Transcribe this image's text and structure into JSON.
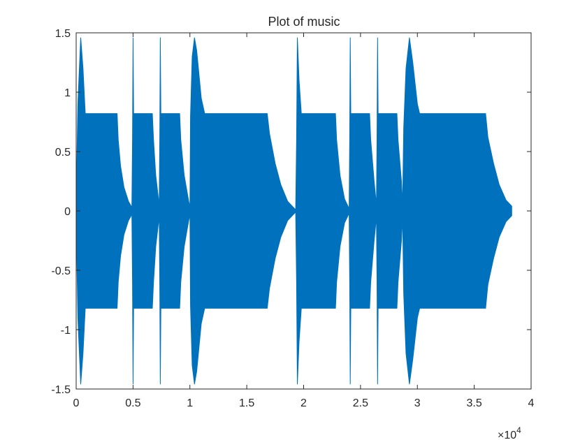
{
  "chart_data": {
    "type": "area",
    "title": "Plot of music",
    "xlabel": "",
    "ylabel": "",
    "xlim": [
      0,
      40000
    ],
    "ylim": [
      -1.5,
      1.5
    ],
    "x_exponent_label": "×10",
    "x_exponent_power": "4",
    "xticks": [
      {
        "value": 0,
        "label": "0"
      },
      {
        "value": 5000,
        "label": "0.5"
      },
      {
        "value": 10000,
        "label": "1"
      },
      {
        "value": 15000,
        "label": "1.5"
      },
      {
        "value": 20000,
        "label": "2"
      },
      {
        "value": 25000,
        "label": "2.5"
      },
      {
        "value": 30000,
        "label": "3"
      },
      {
        "value": 35000,
        "label": "3.5"
      },
      {
        "value": 40000,
        "label": "4"
      }
    ],
    "yticks": [
      {
        "value": 1.5,
        "label": "1.5"
      },
      {
        "value": 1,
        "label": "1"
      },
      {
        "value": 0.5,
        "label": "0.5"
      },
      {
        "value": 0,
        "label": "0"
      },
      {
        "value": -0.5,
        "label": "-0.5"
      },
      {
        "value": -1,
        "label": "-1"
      },
      {
        "value": -1.5,
        "label": "-1.5"
      }
    ],
    "grid": false,
    "series": [
      {
        "color": "#0072BD",
        "envelope_upper": [
          [
            0,
            0.05
          ],
          [
            150,
            0.9
          ],
          [
            400,
            1.46
          ],
          [
            600,
            1.2
          ],
          [
            800,
            0.82
          ],
          [
            3600,
            0.82
          ],
          [
            3700,
            0.6
          ],
          [
            3900,
            0.38
          ],
          [
            4200,
            0.2
          ],
          [
            4600,
            0.08
          ],
          [
            4900,
            0.03
          ],
          [
            4950,
            0.6
          ],
          [
            5000,
            1.46
          ],
          [
            5050,
            0.82
          ],
          [
            6700,
            0.82
          ],
          [
            6800,
            0.6
          ],
          [
            7000,
            0.3
          ],
          [
            7300,
            0.05
          ],
          [
            7350,
            0.6
          ],
          [
            7400,
            1.46
          ],
          [
            7450,
            0.82
          ],
          [
            9100,
            0.82
          ],
          [
            9200,
            0.6
          ],
          [
            9500,
            0.3
          ],
          [
            9900,
            0.08
          ],
          [
            10000,
            0.03
          ],
          [
            10050,
            0.8
          ],
          [
            10200,
            1.3
          ],
          [
            10400,
            1.46
          ],
          [
            10600,
            1.35
          ],
          [
            11000,
            0.95
          ],
          [
            11300,
            0.82
          ],
          [
            16800,
            0.82
          ],
          [
            17000,
            0.65
          ],
          [
            17500,
            0.4
          ],
          [
            18000,
            0.22
          ],
          [
            18600,
            0.08
          ],
          [
            19300,
            0.01
          ],
          [
            19380,
            0.6
          ],
          [
            19450,
            1.46
          ],
          [
            19600,
            1.1
          ],
          [
            19800,
            0.82
          ],
          [
            22800,
            0.82
          ],
          [
            22900,
            0.6
          ],
          [
            23200,
            0.3
          ],
          [
            23600,
            0.1
          ],
          [
            24000,
            0.02
          ],
          [
            24050,
            0.6
          ],
          [
            24100,
            1.46
          ],
          [
            24150,
            0.82
          ],
          [
            25800,
            0.82
          ],
          [
            25900,
            0.6
          ],
          [
            26200,
            0.25
          ],
          [
            26400,
            0.05
          ],
          [
            26450,
            0.6
          ],
          [
            26500,
            1.46
          ],
          [
            26550,
            0.82
          ],
          [
            28200,
            0.82
          ],
          [
            28300,
            0.6
          ],
          [
            28600,
            0.25
          ],
          [
            28700,
            0.05
          ],
          [
            28800,
            0.7
          ],
          [
            29000,
            1.2
          ],
          [
            29300,
            1.46
          ],
          [
            29600,
            1.25
          ],
          [
            30000,
            0.9
          ],
          [
            30200,
            0.82
          ],
          [
            36000,
            0.82
          ],
          [
            36200,
            0.62
          ],
          [
            36700,
            0.4
          ],
          [
            37200,
            0.22
          ],
          [
            37800,
            0.09
          ],
          [
            38200,
            0.05
          ],
          [
            38300,
            0.04
          ]
        ],
        "envelope_lower": [
          [
            0,
            -0.05
          ],
          [
            150,
            -0.9
          ],
          [
            400,
            -1.46
          ],
          [
            600,
            -1.2
          ],
          [
            800,
            -0.82
          ],
          [
            3600,
            -0.82
          ],
          [
            3700,
            -0.6
          ],
          [
            3900,
            -0.38
          ],
          [
            4200,
            -0.2
          ],
          [
            4600,
            -0.08
          ],
          [
            4900,
            -0.03
          ],
          [
            4950,
            -0.6
          ],
          [
            5000,
            -1.46
          ],
          [
            5050,
            -0.82
          ],
          [
            6700,
            -0.82
          ],
          [
            6800,
            -0.6
          ],
          [
            7000,
            -0.3
          ],
          [
            7300,
            -0.05
          ],
          [
            7350,
            -0.6
          ],
          [
            7400,
            -1.46
          ],
          [
            7450,
            -0.82
          ],
          [
            9100,
            -0.82
          ],
          [
            9200,
            -0.6
          ],
          [
            9500,
            -0.3
          ],
          [
            9900,
            -0.08
          ],
          [
            10000,
            -0.03
          ],
          [
            10050,
            -0.8
          ],
          [
            10200,
            -1.3
          ],
          [
            10400,
            -1.46
          ],
          [
            10600,
            -1.35
          ],
          [
            11000,
            -0.95
          ],
          [
            11300,
            -0.82
          ],
          [
            16800,
            -0.82
          ],
          [
            17000,
            -0.65
          ],
          [
            17500,
            -0.4
          ],
          [
            18000,
            -0.22
          ],
          [
            18600,
            -0.08
          ],
          [
            19300,
            -0.01
          ],
          [
            19380,
            -0.6
          ],
          [
            19450,
            -1.46
          ],
          [
            19600,
            -1.1
          ],
          [
            19800,
            -0.82
          ],
          [
            22800,
            -0.82
          ],
          [
            22900,
            -0.6
          ],
          [
            23200,
            -0.3
          ],
          [
            23600,
            -0.1
          ],
          [
            24000,
            -0.02
          ],
          [
            24050,
            -0.6
          ],
          [
            24100,
            -1.46
          ],
          [
            24150,
            -0.82
          ],
          [
            25800,
            -0.82
          ],
          [
            25900,
            -0.6
          ],
          [
            26200,
            -0.25
          ],
          [
            26400,
            -0.05
          ],
          [
            26450,
            -0.6
          ],
          [
            26500,
            -1.46
          ],
          [
            26550,
            -0.82
          ],
          [
            28200,
            -0.82
          ],
          [
            28300,
            -0.6
          ],
          [
            28600,
            -0.25
          ],
          [
            28700,
            -0.05
          ],
          [
            28800,
            -0.7
          ],
          [
            29000,
            -1.2
          ],
          [
            29300,
            -1.46
          ],
          [
            29600,
            -1.25
          ],
          [
            30000,
            -0.9
          ],
          [
            30200,
            -0.82
          ],
          [
            36000,
            -0.82
          ],
          [
            36200,
            -0.62
          ],
          [
            36700,
            -0.4
          ],
          [
            37200,
            -0.22
          ],
          [
            37800,
            -0.09
          ],
          [
            38200,
            -0.05
          ],
          [
            38300,
            -0.04
          ]
        ]
      }
    ]
  }
}
